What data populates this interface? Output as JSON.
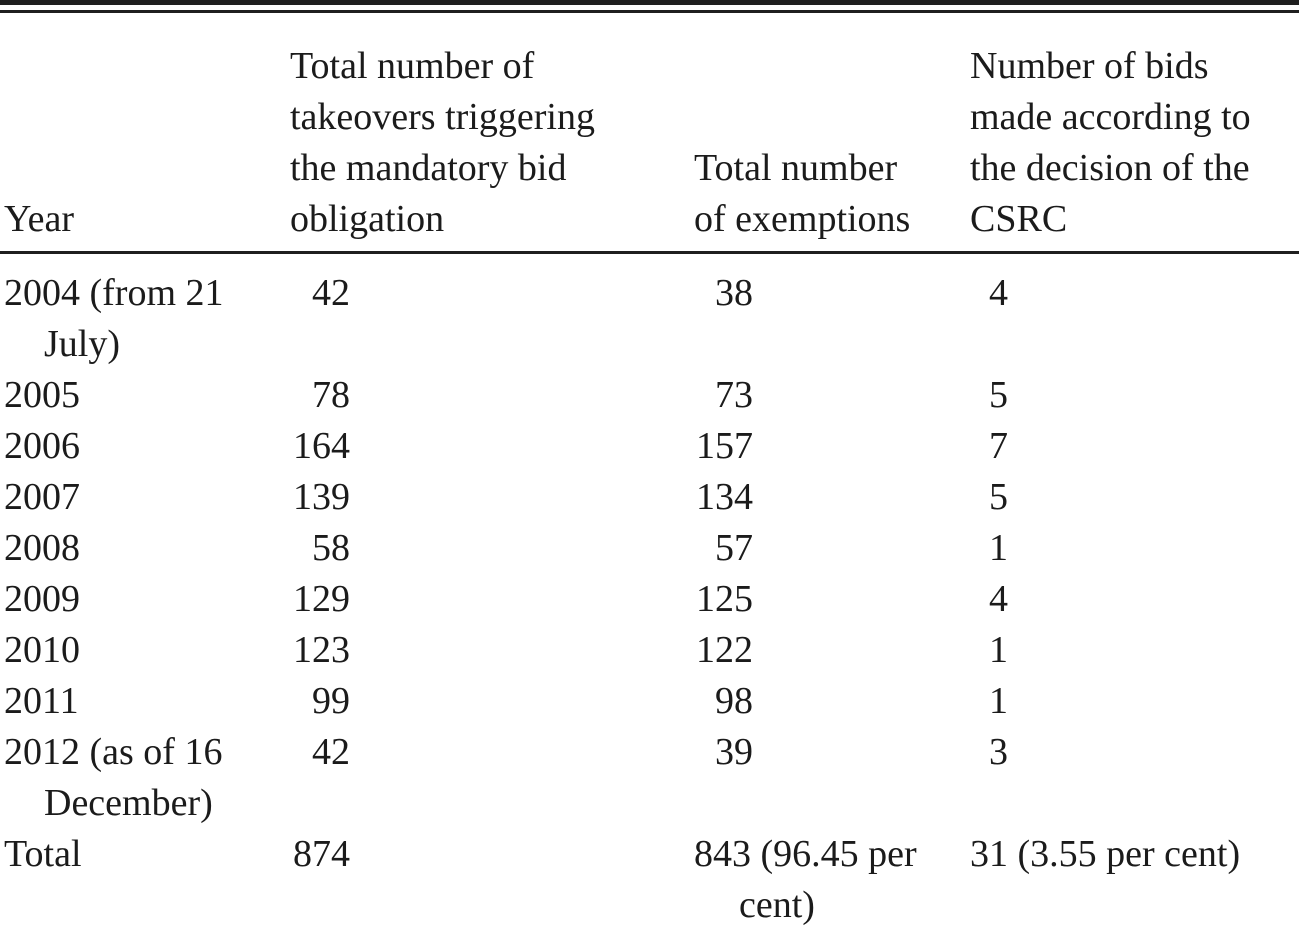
{
  "table": {
    "columns": {
      "year": "Year",
      "takeovers": "Total number of\ntakeovers triggering\nthe mandatory bid\nobligation",
      "exemptions": "Total number\nof exemptions",
      "bids": "Number of bids\nmade according to\nthe decision of the\nCSRC"
    },
    "rows": [
      {
        "year": "2004 (from 21 July)",
        "takeovers": "42",
        "exemptions": "38",
        "bids": "4"
      },
      {
        "year": "2005",
        "takeovers": "78",
        "exemptions": "73",
        "bids": "5"
      },
      {
        "year": "2006",
        "takeovers": "164",
        "exemptions": "157",
        "bids": "7"
      },
      {
        "year": "2007",
        "takeovers": "139",
        "exemptions": "134",
        "bids": "5"
      },
      {
        "year": "2008",
        "takeovers": "58",
        "exemptions": "57",
        "bids": "1"
      },
      {
        "year": "2009",
        "takeovers": "129",
        "exemptions": "125",
        "bids": "4"
      },
      {
        "year": "2010",
        "takeovers": "123",
        "exemptions": "122",
        "bids": "1"
      },
      {
        "year": "2011",
        "takeovers": "99",
        "exemptions": "98",
        "bids": "1"
      },
      {
        "year": "2012 (as of 16 December)",
        "takeovers": "42",
        "exemptions": "39",
        "bids": "3"
      },
      {
        "year": "Total",
        "takeovers": "874",
        "exemptions": "843 (96.45 per cent)",
        "bids": "31 (3.55 per cent)"
      }
    ],
    "colors": {
      "text": "#1b1b1b",
      "rule": "#1f1f1f",
      "background": "#ffffff"
    }
  }
}
